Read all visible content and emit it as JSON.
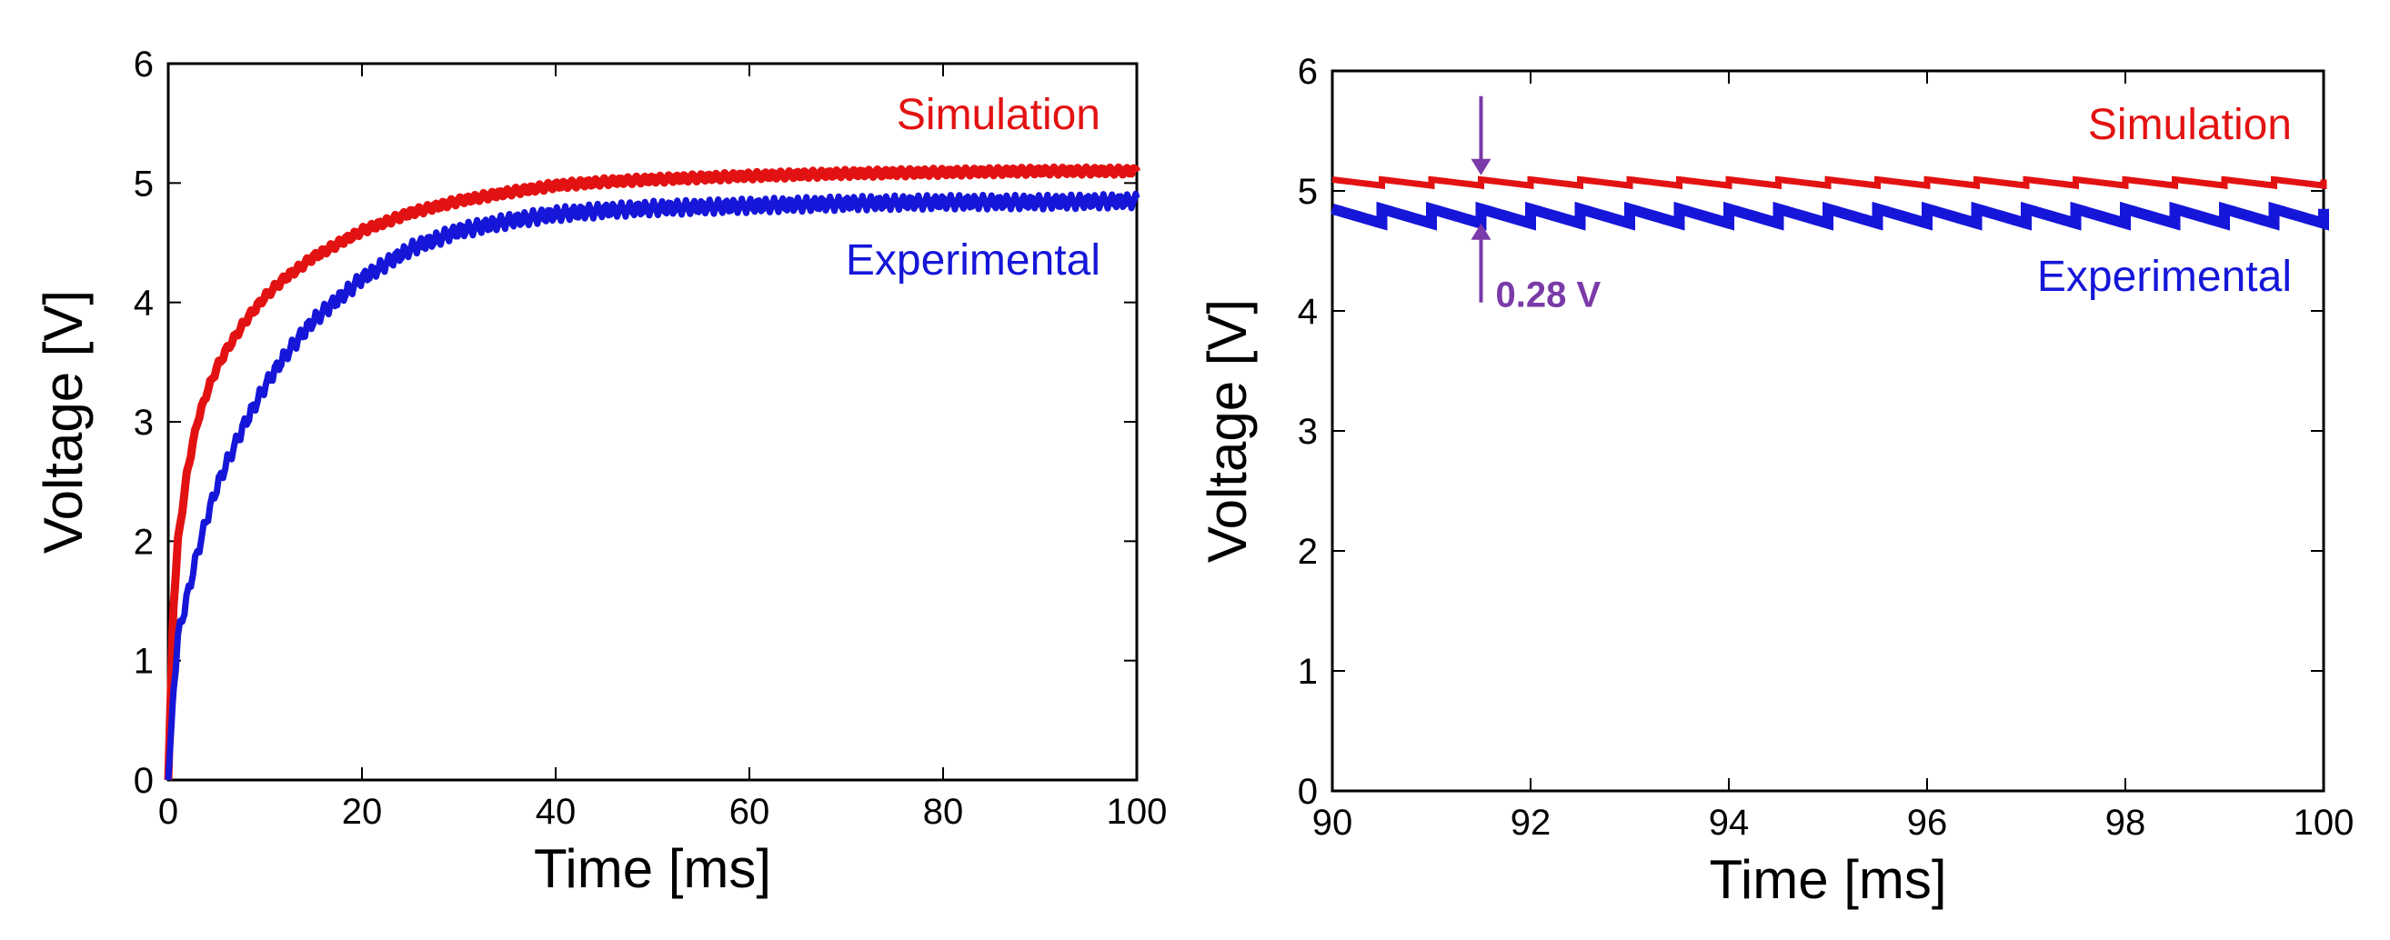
{
  "colors": {
    "simulation": "#e31212",
    "experimental": "#1616d9",
    "annotation": "#7a3aa8"
  },
  "chart_data": [
    {
      "type": "line",
      "xlabel": "Time [ms]",
      "ylabel": "Voltage [V]",
      "xlim": [
        0,
        100
      ],
      "ylim": [
        0,
        6
      ],
      "xticks": [
        0,
        20,
        40,
        60,
        80,
        100
      ],
      "yticks": [
        0,
        1,
        2,
        3,
        4,
        5,
        6
      ],
      "grid": false,
      "series": [
        {
          "name": "Simulation",
          "x": [
            0,
            0.5,
            1,
            2,
            3,
            4,
            5,
            6,
            8,
            10,
            12,
            15,
            20,
            25,
            30,
            35,
            40,
            45,
            50,
            60,
            70,
            80,
            90,
            100
          ],
          "y": [
            0,
            1.4,
            2.0,
            2.6,
            3.0,
            3.25,
            3.45,
            3.6,
            3.85,
            4.05,
            4.2,
            4.38,
            4.6,
            4.75,
            4.85,
            4.92,
            4.98,
            5.01,
            5.03,
            5.06,
            5.08,
            5.09,
            5.1,
            5.1
          ]
        },
        {
          "name": "Experimental",
          "x": [
            0,
            0.5,
            1,
            2,
            3,
            4,
            5,
            6,
            8,
            10,
            12,
            15,
            20,
            25,
            30,
            35,
            40,
            45,
            50,
            60,
            70,
            80,
            90,
            100
          ],
          "y": [
            0,
            0.7,
            1.2,
            1.55,
            1.9,
            2.2,
            2.45,
            2.65,
            3.0,
            3.3,
            3.55,
            3.85,
            4.2,
            4.45,
            4.6,
            4.68,
            4.74,
            4.77,
            4.79,
            4.81,
            4.83,
            4.84,
            4.84,
            4.85
          ]
        }
      ]
    },
    {
      "type": "line",
      "xlabel": "Time [ms]",
      "ylabel": "Voltage [V]",
      "xlim": [
        90,
        100
      ],
      "ylim": [
        0,
        6
      ],
      "xticks": [
        90,
        92,
        94,
        96,
        98,
        100
      ],
      "yticks": [
        0,
        1,
        2,
        3,
        4,
        5,
        6
      ],
      "grid": false,
      "ripple_period_ms": 0.5,
      "annotation": "0.28 V",
      "annotation_x": 91.5,
      "series": [
        {
          "name": "Simulation",
          "mean": 5.07,
          "ripple": 0.05
        },
        {
          "name": "Experimental",
          "mean": 4.79,
          "ripple": 0.12
        }
      ]
    }
  ]
}
